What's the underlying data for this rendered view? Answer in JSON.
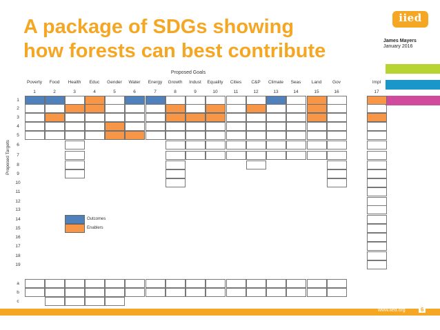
{
  "slide": {
    "title_line1": "A package of SDGs showing",
    "title_line2": "how forests can best contribute",
    "logo_text": "iied",
    "author": "James Mayers",
    "date": "January 2016",
    "footer_url": "www.iied.org",
    "page_number": "6",
    "accent_colors": {
      "title": "#f5a623",
      "bar1": "#b7d433",
      "bar2": "#1b96c9",
      "bar3": "#d04b9c"
    }
  },
  "matrix": {
    "title": "Proposed Goals",
    "y_axis_label": "Proposed Targets",
    "goals": [
      {
        "label": "Poverty",
        "num": "1"
      },
      {
        "label": "Food",
        "num": "2"
      },
      {
        "label": "Health",
        "num": "3"
      },
      {
        "label": "Educ",
        "num": "4"
      },
      {
        "label": "Gender",
        "num": "5"
      },
      {
        "label": "Water",
        "num": "6"
      },
      {
        "label": "Energy",
        "num": "7"
      },
      {
        "label": "Growth",
        "num": "8"
      },
      {
        "label": "Indust",
        "num": "9"
      },
      {
        "label": "Equality",
        "num": "10"
      },
      {
        "label": "Cities",
        "num": "11"
      },
      {
        "label": "C&P",
        "num": "12"
      },
      {
        "label": "Climate",
        "num": "13"
      },
      {
        "label": "Seas",
        "num": "14"
      },
      {
        "label": "Land",
        "num": "15"
      },
      {
        "label": "Gov",
        "num": "16"
      },
      {
        "label": "Impl",
        "num": "17"
      }
    ],
    "target_labels": [
      "1",
      "2",
      "3",
      "4",
      "5",
      "6",
      "7",
      "8",
      "9",
      "10",
      "11",
      "12",
      "13",
      "14",
      "15",
      "16",
      "17",
      "18",
      "19",
      "a",
      "b",
      "c"
    ],
    "goal_cell_counts": [
      6,
      20,
      7,
      3,
      7,
      6,
      7,
      11,
      9,
      7,
      9,
      6,
      6,
      7,
      21,
      12,
      21
    ],
    "blue_cells": [
      [
        0,
        0
      ],
      [
        1,
        0
      ],
      [
        5,
        0
      ],
      [
        6,
        0
      ],
      [
        12,
        0
      ],
      [
        4,
        14
      ]
    ],
    "orange_cells": [
      [
        3,
        0
      ],
      [
        3,
        1
      ],
      [
        1,
        2
      ],
      [
        2,
        1
      ],
      [
        7,
        1
      ],
      [
        9,
        1
      ],
      [
        11,
        1
      ],
      [
        14,
        1
      ],
      [
        14,
        0
      ],
      [
        7,
        2
      ],
      [
        8,
        2
      ],
      [
        9,
        2
      ],
      [
        14,
        2
      ],
      [
        16,
        2
      ],
      [
        16,
        0
      ],
      [
        4,
        3
      ],
      [
        5,
        4
      ],
      [
        4,
        4
      ],
      [
        5,
        15
      ],
      [
        6,
        15
      ],
      [
        6,
        16
      ],
      [
        5,
        11
      ],
      [
        11,
        16
      ],
      [
        18,
        16
      ],
      [
        19,
        4
      ],
      [
        20,
        8
      ],
      [
        20,
        14
      ],
      [
        21,
        1
      ]
    ],
    "legend": {
      "outcomes": "Outcomes",
      "enablers": "Enablers"
    }
  }
}
